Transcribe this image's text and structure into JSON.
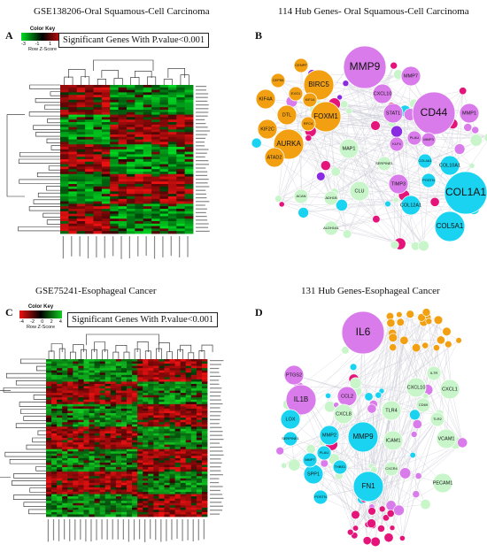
{
  "panelA": {
    "letter": "A",
    "title": "GSE138206-Oral Squamous-Cell Carcinoma",
    "key_title": "Color Key",
    "key_ticks": [
      "-3",
      "-1",
      "1",
      "3"
    ],
    "key_label": "Row Z-Score",
    "sig_label": "Significant Genes With P.value<0.001",
    "colors": {
      "low": "#00dd22",
      "mid": "#000000",
      "high": "#ee1111"
    }
  },
  "panelB": {
    "letter": "B",
    "title": "114 Hub Genes- Oral Squamous-Cell Carcinoma",
    "nodes": [
      {
        "l": "MMP9",
        "c": "violet",
        "s": "xl"
      },
      {
        "l": "CD44",
        "c": "violet",
        "s": "xl"
      },
      {
        "l": "COL1A1",
        "c": "cyan",
        "s": "xl"
      },
      {
        "l": "AURKA",
        "c": "orange",
        "s": "l"
      },
      {
        "l": "BIRC5",
        "c": "orange",
        "s": "l"
      },
      {
        "l": "FOXM1",
        "c": "orange",
        "s": "l"
      },
      {
        "l": "STAT1",
        "c": "violet",
        "s": "m"
      },
      {
        "l": "MMP1",
        "c": "violet",
        "s": "m"
      },
      {
        "l": "MMP7",
        "c": "violet",
        "s": "m"
      },
      {
        "l": "CXCL10",
        "c": "violet",
        "s": "m"
      },
      {
        "l": "TIMP3",
        "c": "violet",
        "s": "m"
      },
      {
        "l": "COL5A1",
        "c": "cyan",
        "s": "l"
      },
      {
        "l": "COL10A1",
        "c": "cyan",
        "s": "m"
      },
      {
        "l": "COL12A1",
        "c": "cyan",
        "s": "m"
      },
      {
        "l": "ATAD2",
        "c": "orange",
        "s": "m"
      },
      {
        "l": "KIF2C",
        "c": "orange",
        "s": "m"
      },
      {
        "l": "KIF4A",
        "c": "orange",
        "s": "m"
      },
      {
        "l": "DTL",
        "c": "orange",
        "s": "m"
      },
      {
        "l": "CEP55",
        "c": "orange",
        "s": "s"
      },
      {
        "l": "CENPF",
        "c": "orange",
        "s": "s"
      },
      {
        "l": "EXO1",
        "c": "orange",
        "s": "s"
      },
      {
        "l": "KIF14",
        "c": "orange",
        "s": "s"
      },
      {
        "l": "RFC4",
        "c": "orange",
        "s": "s"
      },
      {
        "l": "MAP1",
        "c": "green",
        "s": "m"
      },
      {
        "l": "CLU",
        "c": "green",
        "s": "m"
      },
      {
        "l": "ACAN",
        "c": "green",
        "s": "s"
      },
      {
        "l": "ADH1B",
        "c": "green",
        "s": "s"
      },
      {
        "l": "ALDH1A1",
        "c": "green",
        "s": "s"
      },
      {
        "l": "SERPINE1",
        "c": "green",
        "s": "s"
      },
      {
        "l": "PLAU",
        "c": "violet",
        "s": "s"
      },
      {
        "l": "MMP3",
        "c": "violet",
        "s": "s"
      },
      {
        "l": "KLF4",
        "c": "violet",
        "s": "s"
      },
      {
        "l": "COL4A1",
        "c": "cyan",
        "s": "s"
      },
      {
        "l": "POSTN",
        "c": "cyan",
        "s": "s"
      }
    ]
  },
  "panelC": {
    "letter": "C",
    "title": "GSE75241-Esophageal Cancer",
    "key_title": "Color Key",
    "key_ticks": [
      "-4",
      "-2",
      "0",
      "2",
      "4"
    ],
    "key_label": "Row Z-Score",
    "sig_label": "Significant Genes With P.value<0.001",
    "colors": {
      "low": "#ee1111",
      "mid": "#000000",
      "high": "#11cc22"
    }
  },
  "panelD": {
    "letter": "D",
    "title": "131 Hub Genes-Esophageal Cancer",
    "nodes": [
      {
        "l": "IL6",
        "c": "violet",
        "s": "xl"
      },
      {
        "l": "IL1B",
        "c": "violet",
        "s": "l"
      },
      {
        "l": "PTGS2",
        "c": "violet",
        "s": "m"
      },
      {
        "l": "CCL2",
        "c": "violet",
        "s": "m"
      },
      {
        "l": "CXCL8",
        "c": "green",
        "s": "m"
      },
      {
        "l": "TLR4",
        "c": "green",
        "s": "m"
      },
      {
        "l": "ICAM1",
        "c": "green",
        "s": "m"
      },
      {
        "l": "VCAM1",
        "c": "green",
        "s": "m"
      },
      {
        "l": "CXCL10",
        "c": "green",
        "s": "m"
      },
      {
        "l": "CXCL1",
        "c": "green",
        "s": "m"
      },
      {
        "l": "PECAM1",
        "c": "green",
        "s": "m"
      },
      {
        "l": "CXCR4",
        "c": "green",
        "s": "s"
      },
      {
        "l": "MMP9",
        "c": "cyan",
        "s": "l"
      },
      {
        "l": "MMP2",
        "c": "cyan",
        "s": "m"
      },
      {
        "l": "FN1",
        "c": "cyan",
        "s": "l"
      },
      {
        "l": "SPP1",
        "c": "cyan",
        "s": "m"
      },
      {
        "l": "THBS1",
        "c": "cyan",
        "s": "s"
      },
      {
        "l": "LOX",
        "c": "cyan",
        "s": "m"
      },
      {
        "l": "SERPINE1",
        "c": "cyan",
        "s": "s"
      },
      {
        "l": "PLAU",
        "c": "cyan",
        "s": "s"
      },
      {
        "l": "MMP7",
        "c": "cyan",
        "s": "s"
      },
      {
        "l": "POSTN",
        "c": "cyan",
        "s": "s"
      },
      {
        "l": "TLR2",
        "c": "green",
        "s": "s"
      },
      {
        "l": "CD69",
        "c": "green",
        "s": "s"
      },
      {
        "l": "IL7R",
        "c": "green",
        "s": "s"
      }
    ]
  }
}
